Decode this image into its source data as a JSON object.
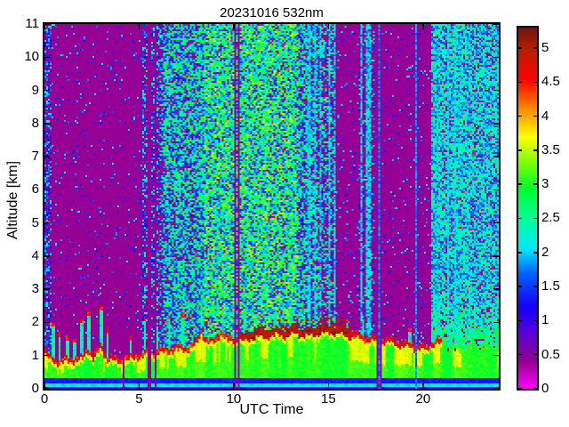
{
  "chart_data": {
    "type": "heatmap",
    "title": "20231016 532nm",
    "xlabel": "UTC Time",
    "ylabel": "Altitude [km]",
    "xlim": [
      0,
      24
    ],
    "ylim": [
      0,
      11
    ],
    "xticks": [
      0,
      5,
      10,
      15,
      20
    ],
    "yticks": [
      0,
      1,
      2,
      3,
      4,
      5,
      6,
      7,
      8,
      9,
      10,
      11
    ],
    "colorbar": {
      "min": 0,
      "max": 5.3,
      "ticks": [
        0,
        0.5,
        1,
        1.5,
        2,
        2.5,
        3,
        3.5,
        4,
        4.5,
        5
      ],
      "tick_labels": [
        "0",
        "0.5",
        "1",
        "1.5",
        "2",
        "2.5",
        "3",
        "3.5",
        "4",
        "4.5",
        "5"
      ]
    },
    "colormap": [
      [
        0.0,
        "#FF00FF"
      ],
      [
        0.4,
        "#92008F"
      ],
      [
        0.8,
        "#5A00D8"
      ],
      [
        1.2,
        "#1400FF"
      ],
      [
        1.7,
        "#0064FF"
      ],
      [
        2.05,
        "#00E8FF"
      ],
      [
        2.5,
        "#00FF96"
      ],
      [
        2.95,
        "#00FF28"
      ],
      [
        3.4,
        "#96FF00"
      ],
      [
        3.7,
        "#FFFF00"
      ],
      [
        4.1,
        "#FF8C00"
      ],
      [
        4.55,
        "#FF0000"
      ],
      [
        5.0,
        "#B42000"
      ],
      [
        5.3,
        "#701410"
      ]
    ],
    "background_value": 0.38,
    "noise_regions": [
      {
        "t0": 0.0,
        "t1": 0.35,
        "p": 0.55,
        "vmin": 0.9,
        "vmax": 2.3
      },
      {
        "t0": 0.35,
        "t1": 5.2,
        "p": 0.05,
        "vmin": 0.9,
        "vmax": 2.3
      },
      {
        "t0": 5.2,
        "t1": 6.3,
        "p": 0.5,
        "vmin": 0.9,
        "vmax": 2.6
      },
      {
        "t0": 6.3,
        "t1": 8.4,
        "p": 0.8,
        "vmin": 1.1,
        "vmax": 3.1
      },
      {
        "t0": 8.4,
        "t1": 13.4,
        "p": 0.93,
        "vmin": 1.3,
        "vmax": 3.6
      },
      {
        "t0": 13.4,
        "t1": 15.35,
        "p": 0.9,
        "p_end": 0.45,
        "vmin": 1.1,
        "vmax": 3.0
      },
      {
        "t0": 15.35,
        "t1": 16.6,
        "p": 0.07,
        "vmin": 0.9,
        "vmax": 2.3
      },
      {
        "t0": 16.6,
        "t1": 17.45,
        "p": 0.3,
        "vmin": 0.9,
        "vmax": 2.5
      },
      {
        "t0": 17.45,
        "t1": 20.45,
        "p": 0.06,
        "vmin": 0.9,
        "vmax": 2.3
      },
      {
        "t0": 20.45,
        "t1": 24.0,
        "p": 0.92,
        "vmin": 1.5,
        "vmax": 2.7,
        "green_low_alt": true
      }
    ],
    "cyan_stripe_times": [
      13.97,
      14.27,
      14.55,
      15.05,
      15.3,
      16.75,
      17.0,
      17.15
    ],
    "gap_columns": [
      {
        "t0": 4.14,
        "t1": 4.22,
        "blue_core": false
      },
      {
        "t0": 5.48,
        "t1": 5.58,
        "blue_core": false
      },
      {
        "t0": 5.8,
        "t1": 5.9,
        "blue_core": false
      },
      {
        "t0": 10.0,
        "t1": 10.12,
        "blue_core": false
      },
      {
        "t0": 10.22,
        "t1": 10.34,
        "blue_core": false
      },
      {
        "t0": 17.5,
        "t1": 17.84,
        "blue_core": true
      },
      {
        "t0": 19.6,
        "t1": 19.68,
        "blue_core": true
      }
    ],
    "rain_columns": [
      {
        "t": 21.35,
        "halfw": 0.05,
        "bottom": 1.1
      },
      {
        "t": 21.68,
        "halfw": 0.05,
        "bottom": 1.1
      },
      {
        "t": 22.02,
        "halfw": 0.03,
        "bottom": 1.2
      }
    ],
    "plumes": [
      [
        0.45,
        2.0,
        1
      ],
      [
        0.8,
        1.7,
        1
      ],
      [
        1.2,
        1.6,
        1
      ],
      [
        1.6,
        1.5,
        1
      ],
      [
        1.95,
        2.1,
        1
      ],
      [
        2.35,
        2.35,
        1
      ],
      [
        3.0,
        2.5,
        1
      ],
      [
        3.35,
        1.8,
        1
      ],
      [
        4.55,
        1.6,
        1
      ],
      [
        5.3,
        2.15,
        1
      ],
      [
        5.95,
        1.8,
        0
      ],
      [
        6.6,
        2.2,
        1
      ],
      [
        7.3,
        2.3,
        1
      ],
      [
        8.3,
        2.6,
        0
      ],
      [
        9.4,
        2.4,
        0
      ],
      [
        10.6,
        2.3,
        0
      ],
      [
        11.2,
        2.2,
        0
      ],
      [
        12.2,
        2.3,
        0
      ],
      [
        13.05,
        2.4,
        0
      ],
      [
        16.0,
        2.1,
        1
      ],
      [
        16.85,
        2.1,
        0
      ],
      [
        19.3,
        1.85,
        1
      ],
      [
        20.6,
        1.9,
        1
      ]
    ],
    "boundary_layer": {
      "profile": [
        [
          0,
          1.2
        ],
        [
          0.3,
          1.0
        ],
        [
          0.8,
          0.9
        ],
        [
          1.5,
          0.95
        ],
        [
          2.0,
          1.0
        ],
        [
          2.3,
          1.3
        ],
        [
          2.6,
          1.0
        ],
        [
          3.0,
          1.35
        ],
        [
          3.3,
          1.0
        ],
        [
          4.0,
          0.95
        ],
        [
          4.8,
          1.05
        ],
        [
          5.5,
          1.15
        ],
        [
          6.0,
          1.2
        ],
        [
          6.5,
          1.25
        ],
        [
          7.0,
          1.3
        ],
        [
          7.6,
          1.3
        ],
        [
          8.0,
          1.45
        ],
        [
          8.3,
          1.8
        ],
        [
          8.6,
          1.5
        ],
        [
          9.0,
          1.5
        ],
        [
          9.3,
          1.8
        ],
        [
          9.7,
          1.55
        ],
        [
          10.2,
          1.6
        ],
        [
          10.7,
          1.7
        ],
        [
          11.2,
          1.8
        ],
        [
          11.7,
          1.78
        ],
        [
          12.2,
          1.85
        ],
        [
          12.7,
          1.8
        ],
        [
          13.2,
          1.9
        ],
        [
          13.7,
          1.82
        ],
        [
          14.2,
          1.85
        ],
        [
          14.7,
          1.9
        ],
        [
          15.2,
          1.92
        ],
        [
          15.7,
          1.88
        ],
        [
          16.2,
          1.75
        ],
        [
          16.7,
          1.62
        ],
        [
          17.2,
          1.58
        ],
        [
          17.7,
          1.52
        ],
        [
          18.2,
          1.55
        ],
        [
          18.7,
          1.45
        ],
        [
          19.2,
          1.4
        ],
        [
          19.7,
          1.35
        ],
        [
          20.2,
          1.3
        ],
        [
          20.7,
          1.5
        ],
        [
          21.2,
          1.45
        ],
        [
          21.7,
          1.3
        ],
        [
          22.2,
          1.28
        ],
        [
          22.7,
          1.32
        ],
        [
          23.2,
          1.28
        ],
        [
          23.7,
          1.32
        ],
        [
          24,
          1.35
        ]
      ],
      "crust": {
        "end_time": 20.3,
        "patchy_until": 21.3,
        "thick_t0": 10.4,
        "thick_t1": 16.2
      },
      "surface_bands": [
        {
          "alt_top": 0.05,
          "v": 1.0
        },
        {
          "alt_top": 0.17,
          "v": 1.95,
          "scallop": 0.35
        },
        {
          "alt_top": 0.3,
          "v": 1.25
        },
        {
          "alt_top": null,
          "v": 2.7
        }
      ]
    }
  }
}
